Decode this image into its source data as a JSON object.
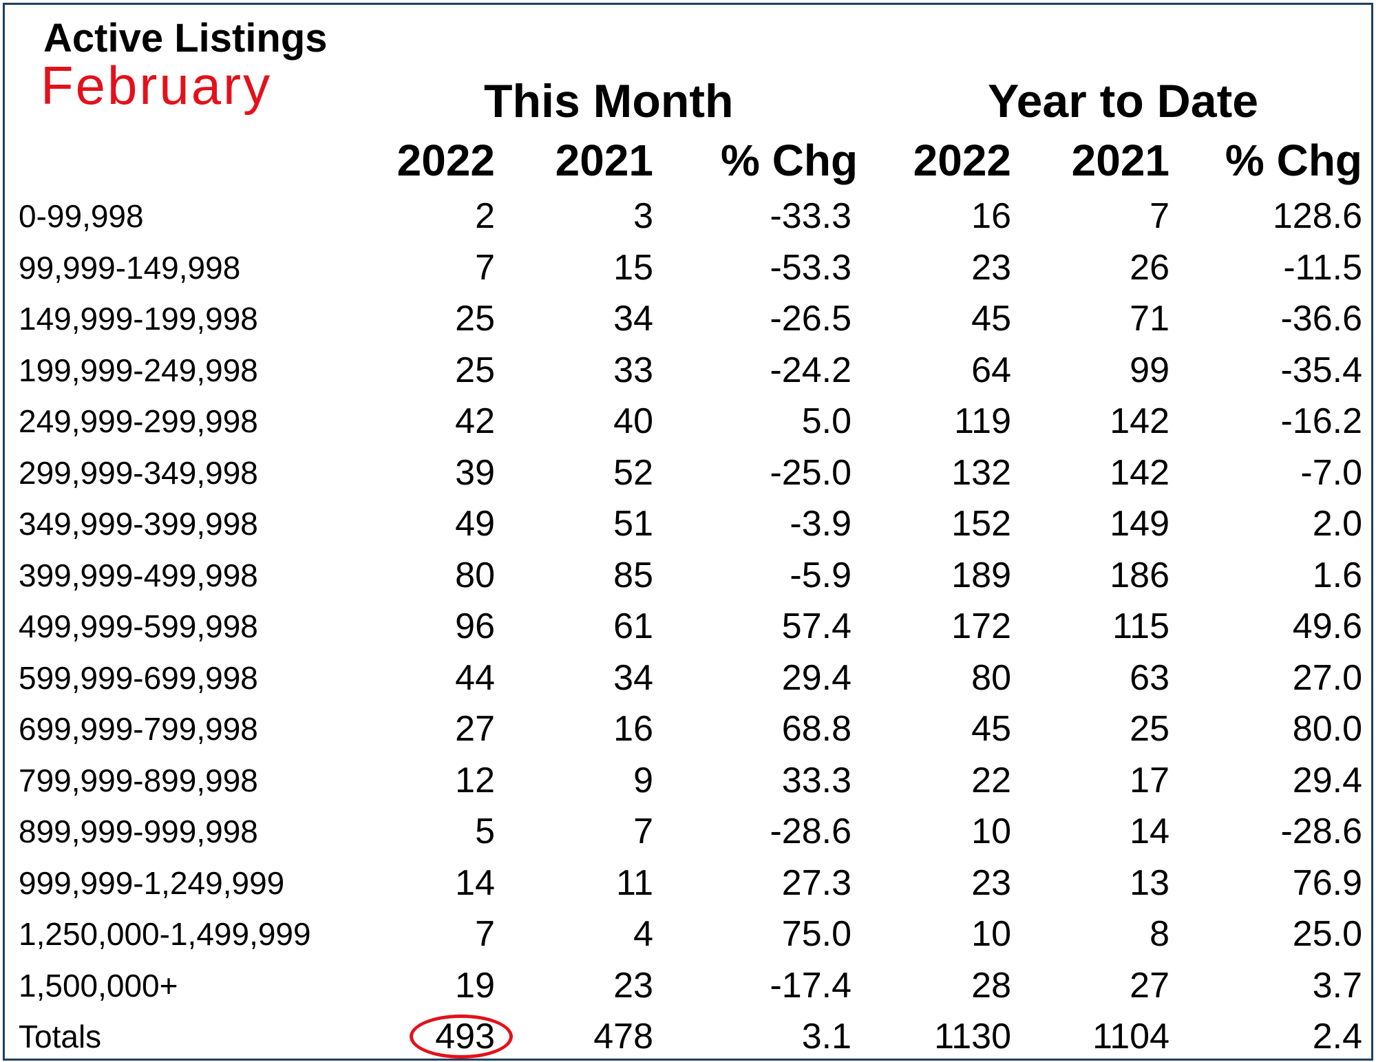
{
  "header": {
    "title": "Active Listings",
    "subtitle": "February"
  },
  "groups": {
    "this_month": "This Month",
    "year_to_date": "Year to Date"
  },
  "columns": [
    "2022",
    "2021",
    "% Chg",
    "2022",
    "2021",
    "% Chg"
  ],
  "rows": [
    {
      "label": "0-99,998",
      "values": [
        "2",
        "3",
        "-33.3",
        "16",
        "7",
        "128.6"
      ]
    },
    {
      "label": "99,999-149,998",
      "values": [
        "7",
        "15",
        "-53.3",
        "23",
        "26",
        "-11.5"
      ]
    },
    {
      "label": "149,999-199,998",
      "values": [
        "25",
        "34",
        "-26.5",
        "45",
        "71",
        "-36.6"
      ]
    },
    {
      "label": "199,999-249,998",
      "values": [
        "25",
        "33",
        "-24.2",
        "64",
        "99",
        "-35.4"
      ]
    },
    {
      "label": "249,999-299,998",
      "values": [
        "42",
        "40",
        "5.0",
        "119",
        "142",
        "-16.2"
      ]
    },
    {
      "label": "299,999-349,998",
      "values": [
        "39",
        "52",
        "-25.0",
        "132",
        "142",
        "-7.0"
      ]
    },
    {
      "label": "349,999-399,998",
      "values": [
        "49",
        "51",
        "-3.9",
        "152",
        "149",
        "2.0"
      ]
    },
    {
      "label": "399,999-499,998",
      "values": [
        "80",
        "85",
        "-5.9",
        "189",
        "186",
        "1.6"
      ]
    },
    {
      "label": "499,999-599,998",
      "values": [
        "96",
        "61",
        "57.4",
        "172",
        "115",
        "49.6"
      ]
    },
    {
      "label": "599,999-699,998",
      "values": [
        "44",
        "34",
        "29.4",
        "80",
        "63",
        "27.0"
      ]
    },
    {
      "label": "699,999-799,998",
      "values": [
        "27",
        "16",
        "68.8",
        "45",
        "25",
        "80.0"
      ]
    },
    {
      "label": "799,999-899,998",
      "values": [
        "12",
        "9",
        "33.3",
        "22",
        "17",
        "29.4"
      ]
    },
    {
      "label": "899,999-999,998",
      "values": [
        "5",
        "7",
        "-28.6",
        "10",
        "14",
        "-28.6"
      ]
    },
    {
      "label": "999,999-1,249,999",
      "values": [
        "14",
        "11",
        "27.3",
        "23",
        "13",
        "76.9"
      ]
    },
    {
      "label": "1,250,000-1,499,999",
      "values": [
        "7",
        "4",
        "75.0",
        "10",
        "8",
        "25.0"
      ]
    },
    {
      "label": "1,500,000+",
      "values": [
        "19",
        "23",
        "-17.4",
        "28",
        "27",
        "3.7"
      ]
    },
    {
      "label": "Totals",
      "values": [
        "493",
        "478",
        "3.1",
        "1130",
        "1104",
        "2.4"
      ]
    }
  ],
  "highlight": {
    "row": "Totals",
    "column": "2022",
    "color": "#e3111b"
  },
  "colors": {
    "frame": "#1f3f5f",
    "accent": "#e3111b"
  }
}
